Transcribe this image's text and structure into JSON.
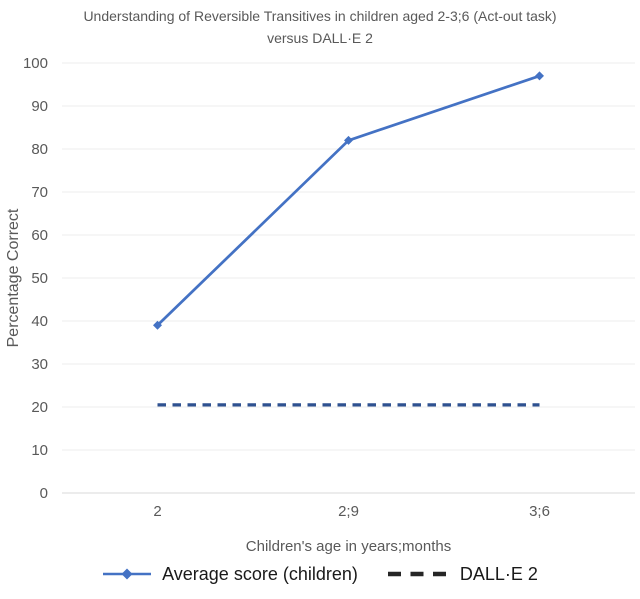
{
  "title": "Understanding of Reversible Transitives in children aged 2-3;6 (Act-out task) versus DALL·E 2",
  "chart_data": {
    "type": "line",
    "title": "Understanding of Reversible Transitives in children aged 2-3;6 (Act-out task) versus DALL·E 2",
    "categories": [
      "2",
      "2;9",
      "3;6"
    ],
    "series": [
      {
        "name": "Average score (children)",
        "values": [
          39,
          82,
          97
        ],
        "color": "#4472c4",
        "style": "solid",
        "marker": "diamond"
      },
      {
        "name": "DALL·E 2",
        "values": [
          20.5,
          20.5,
          20.5
        ],
        "color": "#2e5190",
        "legend_color": "#262626",
        "style": "dashed",
        "marker": "none"
      }
    ],
    "xlabel": "Children's age in years;months",
    "ylabel": "Percentage Correct",
    "ylim": [
      0,
      100
    ],
    "y_ticks": [
      0,
      10,
      20,
      30,
      40,
      50,
      60,
      70,
      80,
      90,
      100
    ],
    "grid": "horizontal",
    "legend_position": "bottom",
    "grid_color": "#ececec",
    "axis_line_color": "#d9d9d9",
    "tick_label_color": "#595959"
  }
}
